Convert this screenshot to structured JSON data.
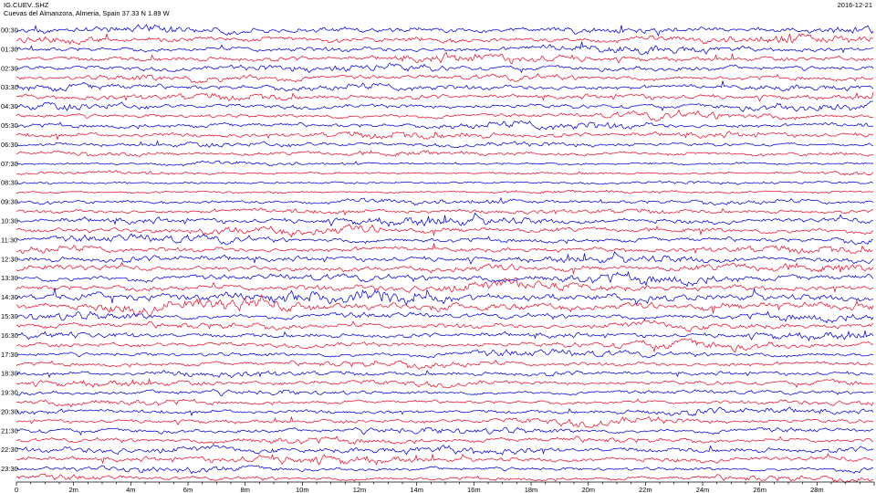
{
  "header": {
    "station": "IG.CUEV..SHZ",
    "location": "Cuevas del Almanzora, Almeria, Spain  37.33 N 1.89 W",
    "date": "2016-12-21"
  },
  "colors": {
    "trace_a": "#0000dd",
    "trace_b": "#e8102a",
    "axis": "#000000"
  },
  "chart_data": {
    "type": "line",
    "title": "",
    "xlabel": "",
    "ylabel": "",
    "x_unit": "minutes",
    "xlim": [
      0,
      30
    ],
    "x_ticks": [
      "0",
      "2m",
      "4m",
      "6m",
      "8m",
      "10m",
      "12m",
      "14m",
      "16m",
      "18m",
      "20m",
      "22m",
      "24m",
      "26m",
      "28m"
    ],
    "y_tick_labels": [
      "00:30",
      "01:30",
      "02:30",
      "03:30",
      "04:30",
      "05:30",
      "06:30",
      "07:30",
      "08:30",
      "09:30",
      "10:30",
      "11:30",
      "12:30",
      "13:30",
      "14:30",
      "15:30",
      "16:30",
      "17:30",
      "18:30",
      "19:30",
      "20:30",
      "21:30",
      "22:30",
      "23:30"
    ],
    "traces_per_hour": 2,
    "hour_activity": [
      0.85,
      0.8,
      0.75,
      0.8,
      0.7,
      0.75,
      0.55,
      0.35,
      0.3,
      0.6,
      0.9,
      0.8,
      0.9,
      1.0,
      1.3,
      0.85,
      0.75,
      0.7,
      0.65,
      0.6,
      0.65,
      0.7,
      0.85,
      0.6
    ],
    "grid": false,
    "legend": "none"
  }
}
